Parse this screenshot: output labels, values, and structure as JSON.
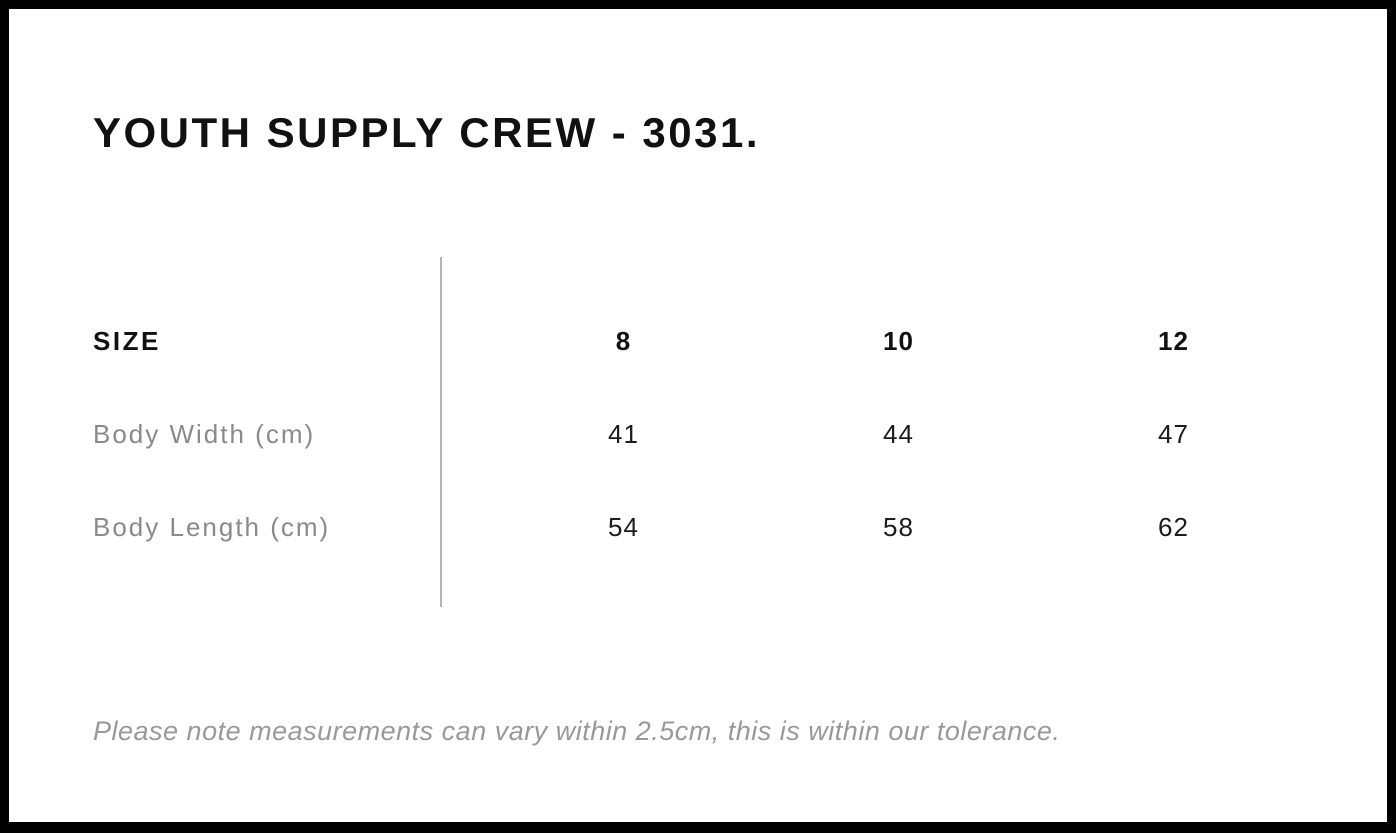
{
  "page": {
    "title": "YOUTH SUPPLY CREW - 3031.",
    "footnote": "Please note measurements can vary within 2.5cm, this is within our tolerance."
  },
  "size_chart": {
    "header": {
      "label": "SIZE",
      "sizes": [
        "8",
        "10",
        "12"
      ]
    },
    "rows": [
      {
        "label": "Body Width (cm)",
        "values": [
          "41",
          "44",
          "47"
        ]
      },
      {
        "label": "Body Length (cm)",
        "values": [
          "54",
          "58",
          "62"
        ]
      }
    ]
  },
  "colors": {
    "frame": "#000000",
    "background": "#ffffff",
    "heading_text": "#111111",
    "value_text": "#1c1c1c",
    "label_text": "#8a8a8a",
    "divider": "#b3b3b3",
    "footnote_text": "#999999"
  }
}
